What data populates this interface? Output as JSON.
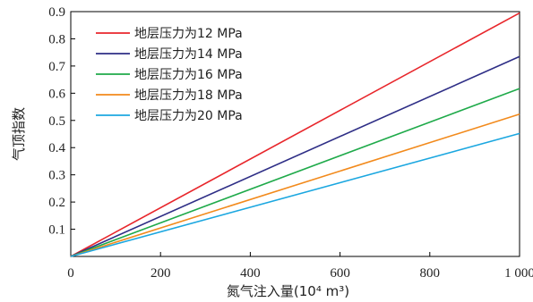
{
  "chart_data": {
    "type": "line",
    "xlabel": "氮气注入量(10⁴ m³)",
    "ylabel": "气顶指数",
    "xlim": [
      0,
      1000
    ],
    "ylim": [
      0,
      0.9
    ],
    "x_ticks": [
      "0",
      "200",
      "400",
      "600",
      "800",
      "1 000"
    ],
    "y_ticks": [
      "0.1",
      "0.2",
      "0.3",
      "0.4",
      "0.5",
      "0.6",
      "0.7",
      "0.8",
      "0.9"
    ],
    "grid": false,
    "legend_position": "top-left",
    "series": [
      {
        "name": "地层压力为12 MPa",
        "color": "#e8262b",
        "x": [
          0,
          1000
        ],
        "y": [
          0,
          0.895
        ]
      },
      {
        "name": "地层压力为14 MPa",
        "color": "#2e2e86",
        "x": [
          0,
          1000
        ],
        "y": [
          0,
          0.735
        ]
      },
      {
        "name": "地层压力为16 MPa",
        "color": "#1faa4a",
        "x": [
          0,
          1000
        ],
        "y": [
          0,
          0.617
        ]
      },
      {
        "name": "地层压力为18 MPa",
        "color": "#f28a1c",
        "x": [
          0,
          1000
        ],
        "y": [
          0,
          0.523
        ]
      },
      {
        "name": "地层压力为20 MPa",
        "color": "#1ba7e0",
        "x": [
          0,
          1000
        ],
        "y": [
          0,
          0.452
        ]
      }
    ]
  }
}
